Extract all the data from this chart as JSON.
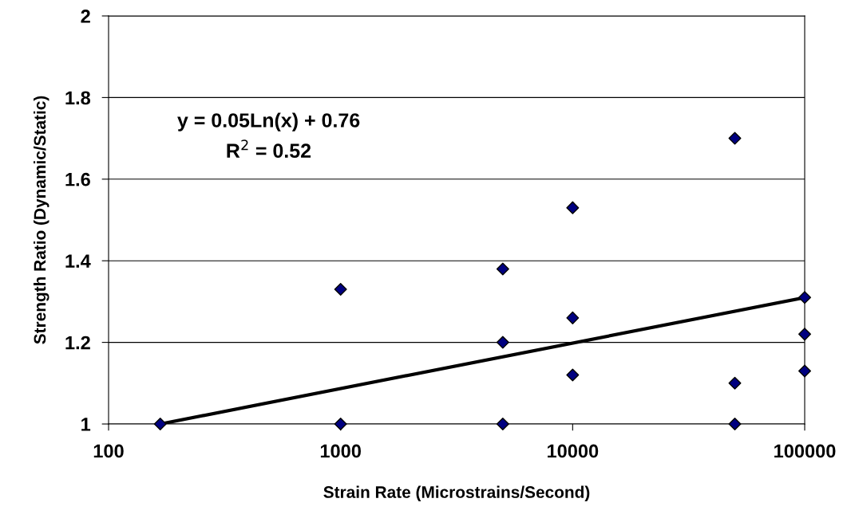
{
  "chart_data": {
    "type": "scatter",
    "xlabel": "Strain Rate (Microstrains/Second)",
    "ylabel": "Strength Ratio (Dynamic/Static)",
    "log": "x",
    "grid": "y",
    "xlim": [
      100,
      100000
    ],
    "xticks": [
      100,
      1000,
      10000,
      100000
    ],
    "ylim": [
      1,
      2
    ],
    "yticks": [
      1,
      1.2,
      1.4,
      1.6,
      1.8,
      2
    ],
    "annotations": [
      "y = 0.05Ln(x) + 0.76",
      "R$^{2}$ = 0.52"
    ],
    "series": [
      {
        "marker": "diamond",
        "color": "#000080",
        "x": [
          167,
          1000,
          1000,
          5000,
          5000,
          5000,
          10000,
          10000,
          10000,
          50000,
          50000,
          50000,
          100000,
          100000,
          100000
        ],
        "values": [
          1.0,
          1.33,
          1.0,
          1.38,
          1.2,
          1.0,
          1.53,
          1.26,
          1.12,
          1.7,
          1.1,
          1.0,
          1.31,
          1.22,
          1.13
        ]
      },
      {
        "type": "line",
        "color": "#000000",
        "line_style": "solid",
        "x": [
          167,
          100000
        ],
        "values": [
          1.0,
          1.31
        ]
      }
    ]
  }
}
